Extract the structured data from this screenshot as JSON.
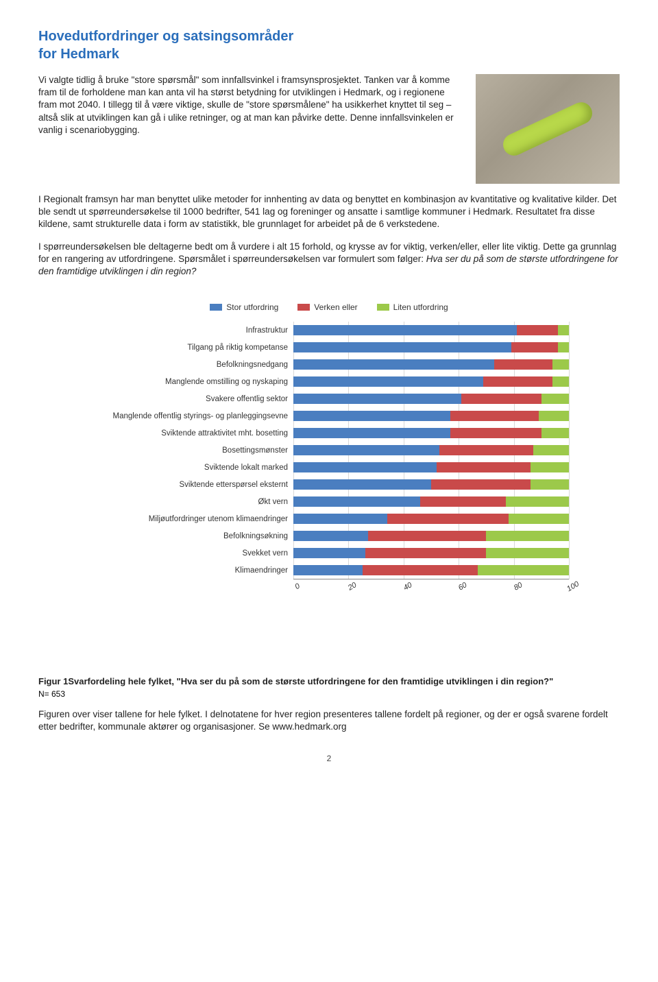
{
  "title_line1": "Hovedutfordringer og satsingsområder",
  "title_line2": "for Hedmark",
  "intro": "Vi valgte tidlig å bruke \"store spørsmål\" som innfallsvinkel i framsynsprosjektet. Tanken var å komme fram til de forholdene man kan anta vil ha størst betydning for utviklingen i Hedmark, og i regionene fram mot 2040. I tillegg til å være viktige, skulle de \"store spørsmålene\" ha usikkerhet knyttet til seg – altså slik at utviklingen kan gå i ulike retninger, og at man kan påvirke dette. Denne innfallsvinkelen er vanlig i scenariobygging.",
  "para2": "I Regionalt framsyn har man benyttet ulike metoder for innhenting av data og benyttet en kombinasjon av kvantitative og kvalitative kilder. Det ble sendt ut spørreundersøkelse til 1000 bedrifter, 541 lag og foreninger og ansatte i samtlige kommuner i Hedmark. Resultatet fra disse kildene, samt strukturelle data i form av statistikk, ble grunnlaget for arbeidet på de 6 verkstedene.",
  "para3a": "I spørreundersøkelsen ble deltagerne bedt om å vurdere i alt 15 forhold, og krysse av for viktig, verken/eller, eller lite viktig. Dette ga grunnlag for en rangering av utfordringene. Spørsmålet i spørreundersøkelsen var formulert som følger: ",
  "para3b": "Hva ser du på som de største utfordringene for den framtidige utviklingen i din region?",
  "legend": {
    "a": "Stor utfordring",
    "b": "Verken eller",
    "c": "Liten utfordring"
  },
  "colors": {
    "blue": "#4a7ec0",
    "red": "#c94a4a",
    "green": "#9cc94a",
    "grid": "#d8d8d8"
  },
  "axis": {
    "min": 0,
    "max": 100,
    "ticks": [
      0,
      20,
      40,
      60,
      80,
      100
    ]
  },
  "rows": [
    {
      "label": "Infrastruktur",
      "v": [
        81,
        15,
        4
      ]
    },
    {
      "label": "Tilgang på riktig kompetanse",
      "v": [
        79,
        17,
        4
      ]
    },
    {
      "label": "Befolkningsnedgang",
      "v": [
        73,
        21,
        6
      ]
    },
    {
      "label": "Manglende omstilling og nyskaping",
      "v": [
        69,
        25,
        6
      ]
    },
    {
      "label": "Svakere offentlig sektor",
      "v": [
        61,
        29,
        10
      ]
    },
    {
      "label": "Manglende offentlig styrings- og planleggingsevne",
      "v": [
        57,
        32,
        11
      ]
    },
    {
      "label": "Sviktende attraktivitet mht. bosetting",
      "v": [
        57,
        33,
        10
      ]
    },
    {
      "label": "Bosettingsmønster",
      "v": [
        53,
        34,
        13
      ]
    },
    {
      "label": "Sviktende lokalt marked",
      "v": [
        52,
        34,
        14
      ]
    },
    {
      "label": "Sviktende etterspørsel eksternt",
      "v": [
        50,
        36,
        14
      ]
    },
    {
      "label": "Økt vern",
      "v": [
        46,
        31,
        23
      ]
    },
    {
      "label": "Miljøutfordringer utenom klimaendringer",
      "v": [
        34,
        44,
        22
      ]
    },
    {
      "label": "Befolkningsøkning",
      "v": [
        27,
        43,
        30
      ]
    },
    {
      "label": "Svekket vern",
      "v": [
        26,
        44,
        30
      ]
    },
    {
      "label": "Klimaendringer",
      "v": [
        25,
        42,
        33
      ]
    }
  ],
  "caption_bold_a": "Figur 1",
  "caption_bold_b": "Svarfordeling hele fylket, \"Hva ser du på som de største utfordringene for den framtidige utviklingen i din region?\"",
  "caption_n": "N= 653",
  "final": "Figuren over viser tallene for hele fylket. I delnotatene for hver region presenteres tallene fordelt på regioner, og der er også svarene fordelt etter bedrifter, kommunale aktører og organisasjoner. Se www.hedmark.org",
  "page_number": "2"
}
